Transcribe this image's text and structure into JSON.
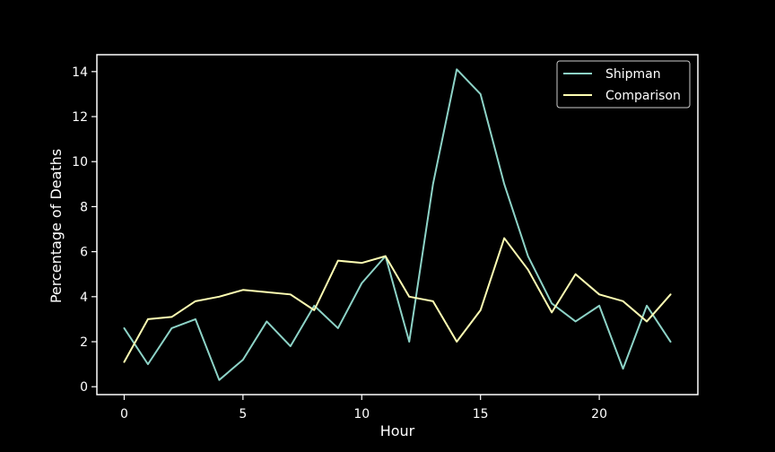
{
  "chart_data": {
    "type": "line",
    "title": "",
    "xlabel": "Hour",
    "ylabel": "Percentage of Deaths",
    "x": [
      0,
      1,
      2,
      3,
      4,
      5,
      6,
      7,
      8,
      9,
      10,
      11,
      12,
      13,
      14,
      15,
      16,
      17,
      18,
      19,
      20,
      21,
      22,
      23
    ],
    "xlim": [
      -1.15,
      24.15
    ],
    "ylim": [
      -0.35,
      14.75
    ],
    "xticks": [
      0,
      5,
      10,
      15,
      20
    ],
    "yticks": [
      0,
      2,
      4,
      6,
      8,
      10,
      12,
      14
    ],
    "grid": false,
    "legend_position": "top-right",
    "background": "#000000",
    "axis_color": "#ffffff",
    "series": [
      {
        "name": "Shipman",
        "color": "#8dd3c7",
        "values": [
          2.6,
          1.0,
          2.6,
          3.0,
          0.3,
          1.2,
          2.9,
          1.8,
          3.6,
          2.6,
          4.6,
          5.8,
          2.0,
          9.0,
          14.1,
          13.0,
          9.0,
          5.8,
          3.7,
          2.9,
          3.6,
          0.8,
          3.6,
          2.0
        ]
      },
      {
        "name": "Comparison",
        "color": "#ffffb3",
        "values": [
          1.1,
          3.0,
          3.1,
          3.8,
          4.0,
          4.3,
          4.2,
          4.1,
          3.4,
          5.6,
          5.5,
          5.8,
          4.0,
          3.8,
          2.0,
          3.4,
          6.6,
          5.2,
          3.3,
          5.0,
          4.1,
          3.8,
          2.9,
          4.1
        ]
      }
    ]
  }
}
